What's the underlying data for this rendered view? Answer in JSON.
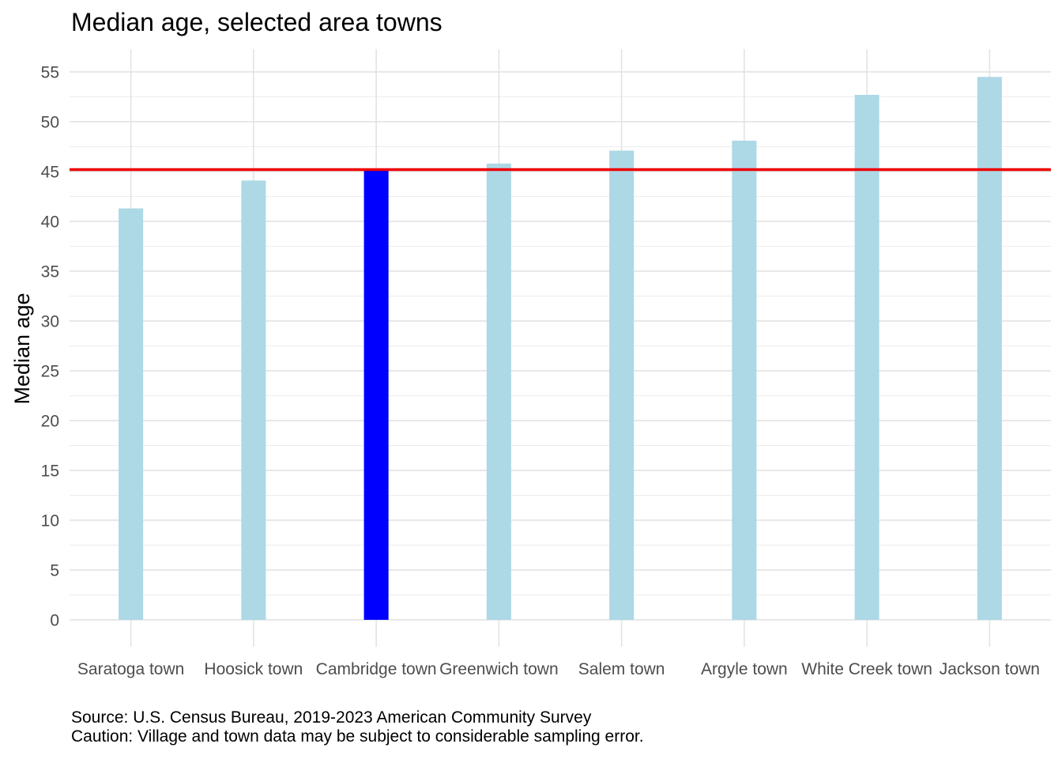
{
  "chart_data": {
    "type": "bar",
    "title": "Median age, selected area towns",
    "xlabel": "",
    "ylabel": "Median age",
    "categories": [
      "Saratoga town",
      "Hoosick town",
      "Cambridge town",
      "Greenwich town",
      "Salem town",
      "Argyle town",
      "White Creek town",
      "Jackson town"
    ],
    "values": [
      41.3,
      44.1,
      45.2,
      45.8,
      47.1,
      48.1,
      52.7,
      54.5
    ],
    "bar_colors": [
      "#add8e6",
      "#add8e6",
      "#0000ff",
      "#add8e6",
      "#add8e6",
      "#add8e6",
      "#add8e6",
      "#add8e6"
    ],
    "highlight_category": "Cambridge town",
    "reference_line": {
      "value": 45.2,
      "color": "#ee0000"
    },
    "ylim": [
      -2.7,
      57.3
    ],
    "y_ticks": [
      0,
      5,
      10,
      15,
      20,
      25,
      30,
      35,
      40,
      45,
      50,
      55
    ],
    "grid": true,
    "legend": "none"
  },
  "captions": {
    "source": "Source: U.S. Census Bureau, 2019-2023 American Community Survey",
    "caution": "Caution: Village and town data may be subject to considerable sampling error."
  }
}
